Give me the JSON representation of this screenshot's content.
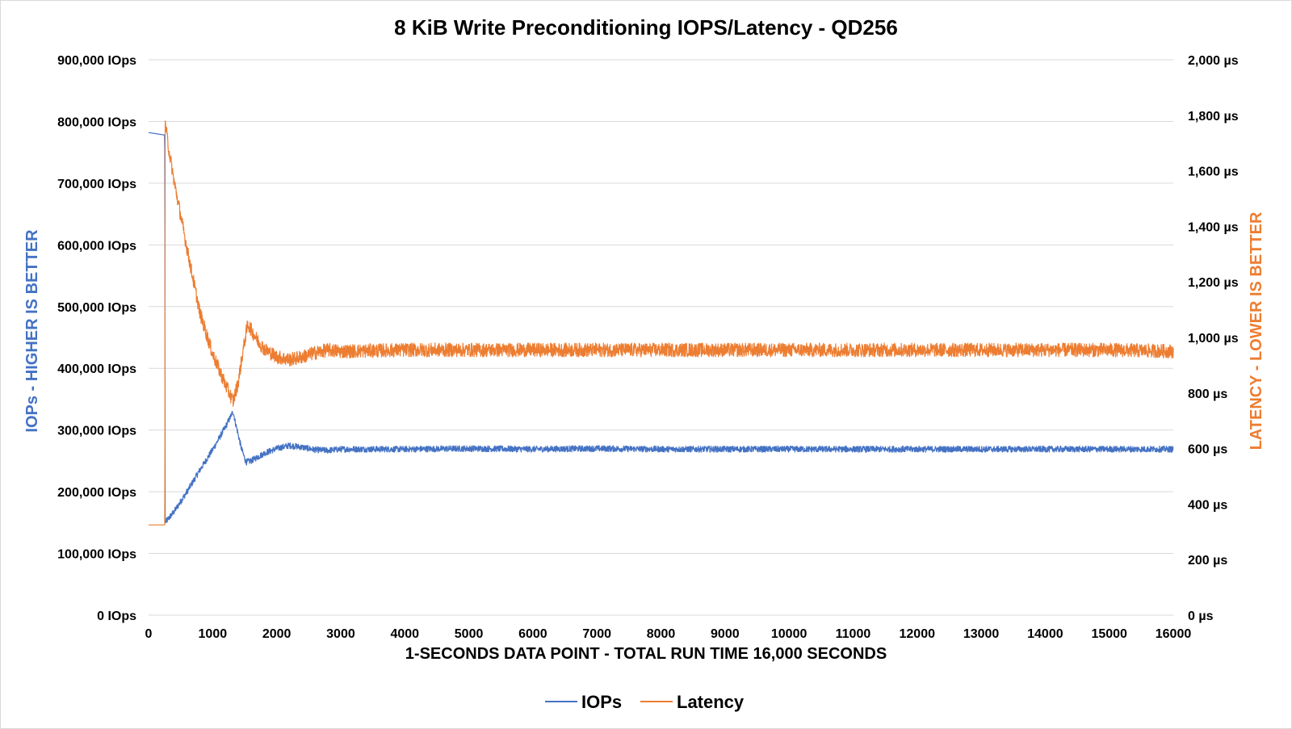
{
  "chart_data": {
    "type": "line",
    "title": "8 KiB Write Preconditioning IOPS/Latency - QD256",
    "xlabel": "1-SECONDS DATA POINT - TOTAL RUN TIME 16,000 SECONDS",
    "ylabel_left": "IOPs - HIGHER IS BETTER",
    "ylabel_right": "LATENCY - LOWER IS BETTER",
    "xlim": [
      0,
      16000
    ],
    "ylim_left": [
      0,
      900000
    ],
    "ylim_right": [
      0,
      2000
    ],
    "x_ticks": [
      0,
      1000,
      2000,
      3000,
      4000,
      5000,
      6000,
      7000,
      8000,
      9000,
      10000,
      11000,
      12000,
      13000,
      14000,
      15000,
      16000
    ],
    "x_tick_labels": [
      "0",
      "1000",
      "2000",
      "3000",
      "4000",
      "5000",
      "6000",
      "7000",
      "8000",
      "9000",
      "10000",
      "11000",
      "12000",
      "13000",
      "14000",
      "15000",
      "16000"
    ],
    "y_left_ticks": [
      0,
      100000,
      200000,
      300000,
      400000,
      500000,
      600000,
      700000,
      800000,
      900000
    ],
    "y_left_tick_labels": [
      "0 IOps",
      "100,000 IOps",
      "200,000 IOps",
      "300,000 IOps",
      "400,000 IOps",
      "500,000 IOps",
      "600,000 IOps",
      "700,000 IOps",
      "800,000 IOps",
      "900,000 IOps"
    ],
    "y_right_ticks": [
      0,
      200,
      400,
      600,
      800,
      1000,
      1200,
      1400,
      1600,
      1800,
      2000
    ],
    "y_right_tick_labels": [
      "0 µs",
      "200 µs",
      "400 µs",
      "600 µs",
      "800 µs",
      "1,000 µs",
      "1,200 µs",
      "1,400 µs",
      "1,600 µs",
      "1,800 µs",
      "2,000 µs"
    ],
    "grid": true,
    "legend_position": "bottom-center",
    "series": [
      {
        "name": "IOPs",
        "axis": "left",
        "color": "#4472c4",
        "x": [
          0,
          250,
          255,
          260,
          400,
          600,
          800,
          1000,
          1200,
          1320,
          1360,
          1450,
          1520,
          1600,
          1800,
          2000,
          2200,
          2400,
          2600,
          2800,
          3000,
          4000,
          5000,
          6000,
          7000,
          8000,
          9000,
          10000,
          11000,
          12000,
          13000,
          14000,
          15000,
          16000
        ],
        "values": [
          782000,
          778000,
          730000,
          150000,
          168000,
          200000,
          235000,
          268000,
          305000,
          330000,
          310000,
          270000,
          248000,
          250000,
          262000,
          270000,
          275000,
          272000,
          268000,
          267000,
          269000,
          269000,
          270000,
          269000,
          270000,
          269000,
          269000,
          269000,
          269000,
          269000,
          269000,
          269000,
          269000,
          269000
        ],
        "noise": 5000
      },
      {
        "name": "Latency",
        "axis": "right",
        "color": "#ed7d31",
        "x": [
          0,
          250,
          255,
          260,
          300,
          400,
          600,
          800,
          1000,
          1200,
          1320,
          1400,
          1480,
          1550,
          1620,
          1700,
          1800,
          2000,
          2200,
          2400,
          2600,
          2800,
          3000,
          4000,
          5000,
          6000,
          7000,
          8000,
          9000,
          10000,
          11000,
          12000,
          13000,
          14000,
          15000,
          16000
        ],
        "values": [
          325,
          325,
          330,
          1780,
          1700,
          1560,
          1320,
          1090,
          940,
          830,
          770,
          840,
          960,
          1050,
          1020,
          990,
          960,
          930,
          920,
          930,
          945,
          955,
          950,
          955,
          955,
          955,
          955,
          955,
          955,
          955,
          955,
          955,
          955,
          955,
          955,
          950
        ],
        "noise": 25
      }
    ]
  }
}
